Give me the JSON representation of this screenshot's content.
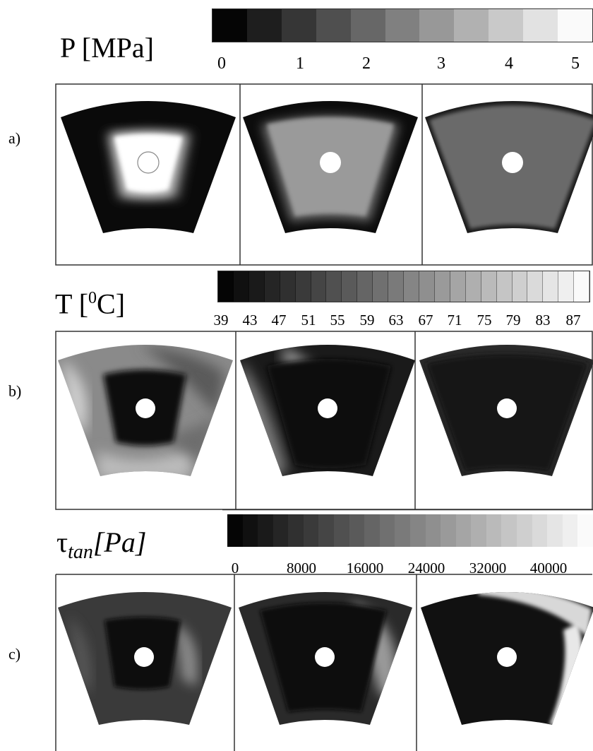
{
  "panel_a": {
    "row_label": "a)",
    "title": "P [MPa]",
    "ticks": [
      "0",
      "1",
      "2",
      "3",
      "4",
      "5"
    ]
  },
  "panel_b": {
    "row_label": "b)",
    "title_prefix": "T [",
    "title_sup": "0",
    "title_suffix": "C]",
    "ticks": [
      "39",
      "43",
      "47",
      "51",
      "55",
      "59",
      "63",
      "67",
      "71",
      "75",
      "79",
      "83",
      "87"
    ]
  },
  "panel_c": {
    "row_label": "c)",
    "title_tau": "τ",
    "title_sub": "tan",
    "title_unit": "[Pa]",
    "ticks": [
      "0",
      "8000",
      "16000",
      "24000",
      "32000",
      "40000"
    ]
  }
}
